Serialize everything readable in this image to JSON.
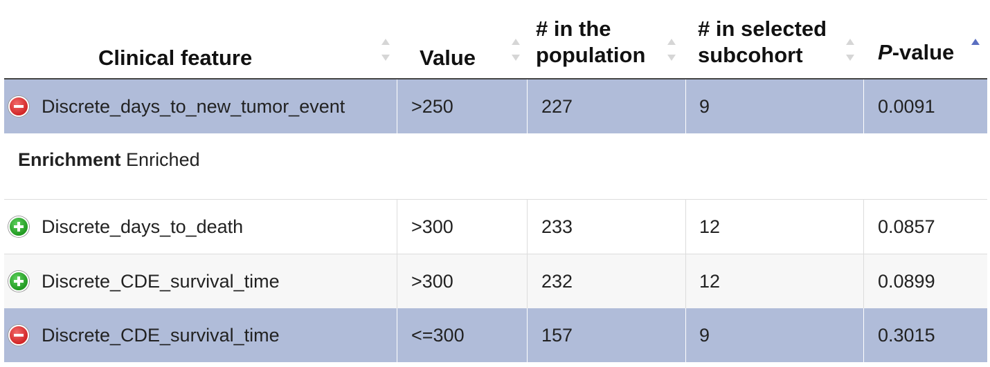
{
  "header": {
    "clinical_feature": "Clinical feature",
    "value": "Value",
    "population_line1": "# in the",
    "population_line2": "population",
    "subcohort_line1": "# in selected",
    "subcohort_line2": "subcohort",
    "pvalue_italic": "P",
    "pvalue_rest": "-value"
  },
  "rows": [
    {
      "icon": "minus-circle-icon",
      "feature": "Discrete_days_to_new_tumor_event",
      "value": ">250",
      "population": "227",
      "subcohort": "9",
      "pvalue": "0.0091",
      "selected": true
    },
    {
      "icon": "plus-circle-icon",
      "feature": "Discrete_days_to_death",
      "value": ">300",
      "population": "233",
      "subcohort": "12",
      "pvalue": "0.0857",
      "selected": false
    },
    {
      "icon": "plus-circle-icon",
      "feature": "Discrete_CDE_survival_time",
      "value": ">300",
      "population": "232",
      "subcohort": "12",
      "pvalue": "0.0899",
      "selected": false
    },
    {
      "icon": "minus-circle-icon",
      "feature": "Discrete_CDE_survival_time",
      "value": "<=300",
      "population": "157",
      "subcohort": "9",
      "pvalue": "0.3015",
      "selected": true
    }
  ],
  "detail": {
    "label": "Enrichment",
    "value": "Enriched"
  },
  "sort": {
    "column": "pvalue",
    "direction": "ascending"
  },
  "colors": {
    "selected_row": "#b0bcd9",
    "sort_active": "#5a6fc0",
    "minus_icon": "#d12626",
    "plus_icon": "#229a22"
  }
}
